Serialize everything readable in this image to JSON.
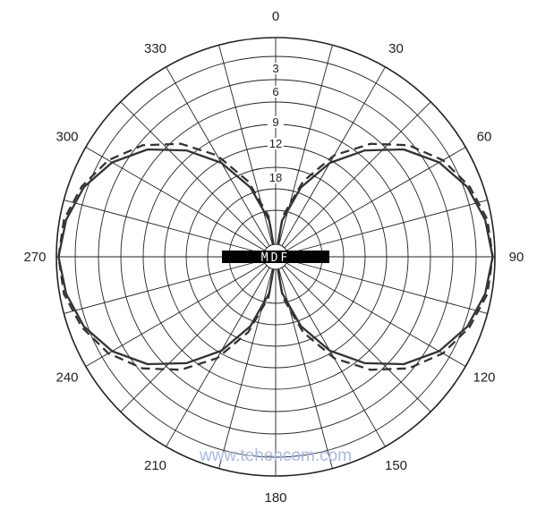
{
  "chart_data": {
    "type": "polar-line",
    "angle_unit": "degrees",
    "angle_labels": [
      "0",
      "30",
      "60",
      "90",
      "120",
      "150",
      "180",
      "210",
      "240",
      "270",
      "300",
      "330"
    ],
    "angle_values": [
      0,
      30,
      60,
      90,
      120,
      150,
      180,
      210,
      240,
      270,
      300,
      330
    ],
    "radial_unit": "dB attenuation",
    "radial_labels": [
      "3",
      "6",
      "9",
      "12",
      "18"
    ],
    "radial_values": [
      3,
      6,
      9,
      12,
      18
    ],
    "grid": true,
    "center_label": "MDF",
    "series": [
      {
        "style": "solid",
        "angles": [
          0,
          10,
          20,
          30,
          40,
          50,
          60,
          70,
          80,
          90,
          100,
          110,
          120,
          130,
          140,
          150,
          160,
          170,
          180,
          190,
          200,
          210,
          220,
          230,
          240,
          250,
          260,
          270,
          280,
          290,
          300,
          310,
          320,
          330,
          340,
          350
        ],
        "gain": [
          0.0,
          0.17,
          0.34,
          0.5,
          0.64,
          0.77,
          0.87,
          0.94,
          0.98,
          1.0,
          0.98,
          0.94,
          0.87,
          0.77,
          0.64,
          0.5,
          0.34,
          0.17,
          0.0,
          0.17,
          0.34,
          0.5,
          0.64,
          0.77,
          0.87,
          0.94,
          0.98,
          1.0,
          0.98,
          0.94,
          0.87,
          0.77,
          0.64,
          0.5,
          0.34,
          0.17
        ]
      },
      {
        "style": "dashed",
        "angles": [
          0,
          10,
          20,
          30,
          40,
          50,
          60,
          70,
          80,
          90,
          100,
          110,
          120,
          130,
          140,
          150,
          160,
          170,
          180,
          190,
          200,
          210,
          220,
          230,
          240,
          250,
          260,
          270,
          280,
          290,
          300,
          310,
          320,
          330,
          340,
          350
        ],
        "gain": [
          0.0,
          0.19,
          0.37,
          0.54,
          0.68,
          0.8,
          0.89,
          0.95,
          0.99,
          1.0,
          0.99,
          0.95,
          0.89,
          0.8,
          0.68,
          0.54,
          0.37,
          0.19,
          0.0,
          0.19,
          0.37,
          0.54,
          0.68,
          0.8,
          0.89,
          0.95,
          0.99,
          1.0,
          0.99,
          0.95,
          0.89,
          0.8,
          0.68,
          0.54,
          0.37,
          0.19
        ]
      }
    ]
  },
  "watermark": "www.tehencom.com",
  "colors": {
    "grid": "#222222",
    "curve": "#333333",
    "center_bar": "#000000",
    "watermark": "#a9b9e8"
  }
}
